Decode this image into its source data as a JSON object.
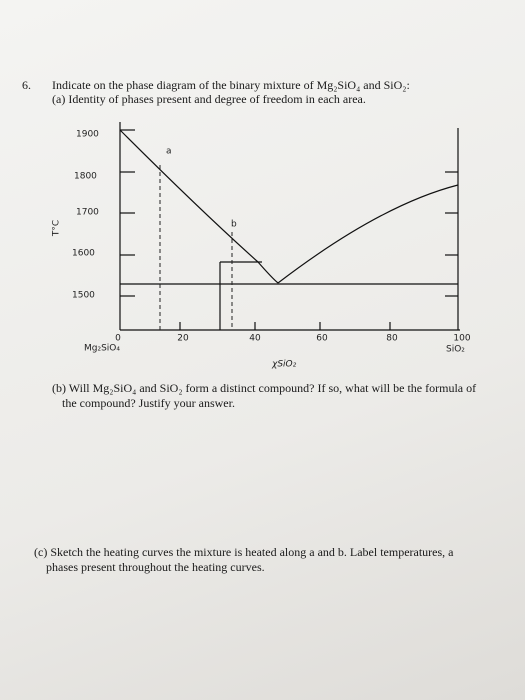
{
  "question_number": "6.",
  "question": {
    "intro": "Indicate on the phase diagram of the binary mixture of Mg₂SiO₄ and SiO₂:",
    "part_a": "(a) Identity of phases present and degree of freedom in each area."
  },
  "diagram": {
    "y_axis_label": "T°C",
    "y_ticks": [
      "1900",
      "1800",
      "1700",
      "1600",
      "1500"
    ],
    "x_ticks": [
      "0",
      "20",
      "40",
      "60",
      "80",
      "100"
    ],
    "left_component": "Mg₂SiO₄",
    "right_component": "SiO₂",
    "x_axis_label": "χSiO₂",
    "point_labels": [
      "a",
      "b"
    ]
  },
  "part_b": {
    "line1": "(b) Will Mg₂SiO₄ and SiO₂ form a distinct compound?  If so, what will be the formula of",
    "line2": "the compound?  Justify your answer."
  },
  "part_c": {
    "line1": "(c) Sketch the heating curves the mixture is heated along a and b.  Label temperatures, a",
    "line2": "phases present throughout the heating curves."
  }
}
